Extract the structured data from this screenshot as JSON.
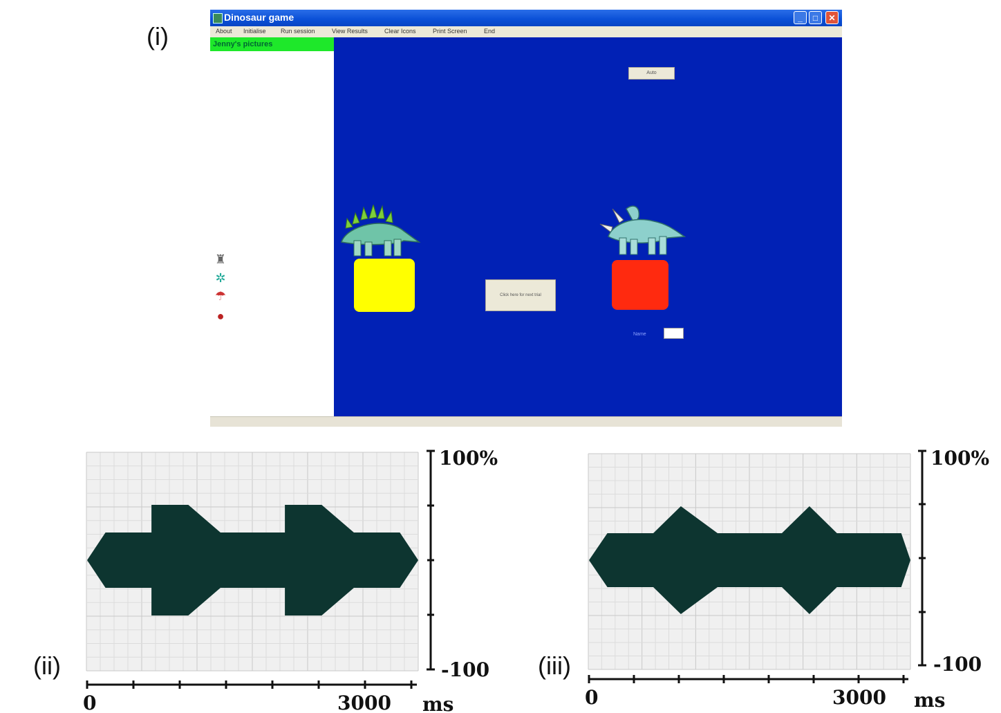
{
  "labels": {
    "panel_i": "(i)",
    "panel_ii": "(ii)",
    "panel_iii": "(iii)"
  },
  "window": {
    "title": "Dinosaur game",
    "controls": {
      "minimize": "_",
      "maximize": "□",
      "close": "✕"
    },
    "menu": [
      "About",
      "Initialise",
      "Run session",
      "View Results",
      "Clear Icons",
      "Print Screen",
      "End"
    ]
  },
  "sidebar": {
    "title": "Jenny's pictures",
    "thumbnails": [
      {
        "icon": "robot-icon",
        "glyph": "♜"
      },
      {
        "icon": "pinwheel-icon",
        "glyph": "✲"
      },
      {
        "icon": "umbrella-icon",
        "glyph": "☂"
      },
      {
        "icon": "ladybird-icon",
        "glyph": "●"
      }
    ]
  },
  "stage": {
    "background": "#0121b5",
    "top_button": "Auto",
    "next_trial_button": "Click here for next trial",
    "name_label": "Name",
    "name_value": "",
    "left_box_color": "#ffff00",
    "right_box_color": "#ff2a0f",
    "left_dinosaur": "stegosaurus",
    "right_dinosaur": "triceratops"
  },
  "chart_data": [
    {
      "type": "area",
      "panel": "(ii)",
      "x_unit": "ms",
      "x_ticks": [
        "0",
        "3000"
      ],
      "y_ticks": [
        "100%",
        "-100"
      ],
      "x": [
        0,
        200,
        700,
        700,
        1100,
        1450,
        2150,
        2150,
        2550,
        2900,
        3400,
        3600
      ],
      "upper": [
        0,
        25,
        25,
        50,
        50,
        25,
        25,
        50,
        50,
        25,
        25,
        0
      ],
      "lower": [
        0,
        -25,
        -25,
        -50,
        -50,
        -25,
        -25,
        -50,
        -50,
        -25,
        -25,
        0
      ],
      "fill": "#0d3530"
    },
    {
      "type": "area",
      "panel": "(iii)",
      "x_unit": "ms",
      "x_ticks": [
        "0",
        "3000"
      ],
      "y_ticks": [
        "100%",
        "-100"
      ],
      "x": [
        0,
        200,
        700,
        1000,
        1400,
        2100,
        2400,
        2700,
        3400,
        3500
      ],
      "upper": [
        0,
        25,
        25,
        50,
        25,
        25,
        50,
        25,
        25,
        0
      ],
      "lower": [
        0,
        -25,
        -25,
        -50,
        -25,
        -25,
        -50,
        -25,
        -25,
        0
      ],
      "fill": "#0d3530"
    }
  ]
}
